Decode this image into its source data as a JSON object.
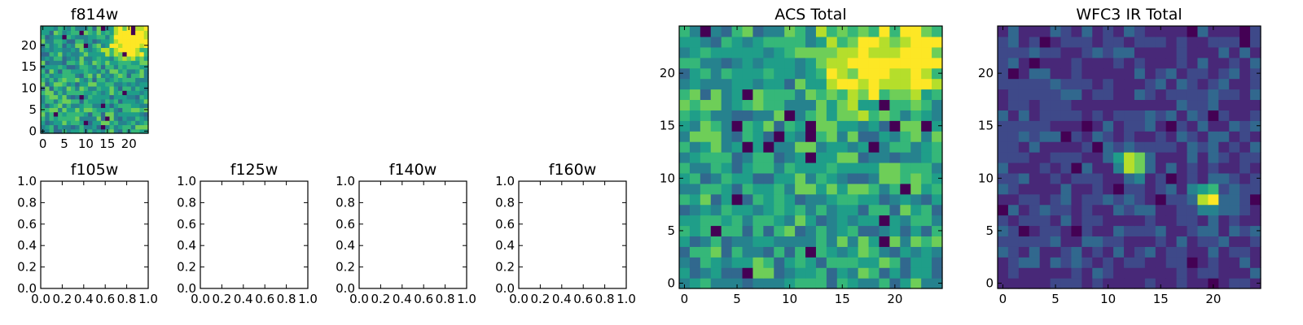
{
  "chart_data": [
    {
      "type": "heatmap",
      "title": "f814w",
      "pixels": 25,
      "xlim": [
        0,
        24
      ],
      "ylim": [
        0,
        24
      ],
      "xticks": [
        "0",
        "5",
        "10",
        "15",
        "20"
      ],
      "yticks": [
        "0",
        "5",
        "10",
        "15",
        "20"
      ],
      "colormap": "viridis",
      "hotspots": [
        {
          "x": 20,
          "y": 21,
          "amplitude": 0.55,
          "sigma": 3.0
        },
        {
          "x": 23,
          "y": 23,
          "amplitude": 0.35,
          "sigma": 2.0
        }
      ],
      "base_level": 0.55,
      "noise": 0.2,
      "seed": 11
    },
    {
      "type": "empty",
      "title": "f105w",
      "xlim": [
        0.0,
        1.0
      ],
      "ylim": [
        0.0,
        1.0
      ],
      "xticks": [
        "0.0",
        "0.2",
        "0.4",
        "0.6",
        "0.8",
        "1.0"
      ],
      "yticks": [
        "0.0",
        "0.2",
        "0.4",
        "0.6",
        "0.8",
        "1.0"
      ]
    },
    {
      "type": "empty",
      "title": "f125w",
      "xlim": [
        0.0,
        1.0
      ],
      "ylim": [
        0.0,
        1.0
      ],
      "xticks": [
        "0.0",
        "0.2",
        "0.4",
        "0.6",
        "0.8",
        "1.0"
      ],
      "yticks": [
        "0.0",
        "0.2",
        "0.4",
        "0.6",
        "0.8",
        "1.0"
      ]
    },
    {
      "type": "empty",
      "title": "f140w",
      "xlim": [
        0.0,
        1.0
      ],
      "ylim": [
        0.0,
        1.0
      ],
      "xticks": [
        "0.0",
        "0.2",
        "0.4",
        "0.6",
        "0.8",
        "1.0"
      ],
      "yticks": [
        "0.0",
        "0.2",
        "0.4",
        "0.6",
        "0.8",
        "1.0"
      ]
    },
    {
      "type": "empty",
      "title": "f160w",
      "xlim": [
        0.0,
        1.0
      ],
      "ylim": [
        0.0,
        1.0
      ],
      "xticks": [
        "0.0",
        "0.2",
        "0.4",
        "0.6",
        "0.8",
        "1.0"
      ],
      "yticks": [
        "0.0",
        "0.2",
        "0.4",
        "0.6",
        "0.8",
        "1.0"
      ]
    },
    {
      "type": "heatmap",
      "title": "ACS Total",
      "pixels": 25,
      "xlim": [
        0,
        24
      ],
      "ylim": [
        0,
        24
      ],
      "xticks": [
        "0",
        "5",
        "10",
        "15",
        "20"
      ],
      "yticks": [
        "0",
        "5",
        "10",
        "15",
        "20"
      ],
      "colormap": "viridis",
      "hotspots": [
        {
          "x": 17,
          "y": 21,
          "amplitude": 0.45,
          "sigma": 2.8
        },
        {
          "x": 23,
          "y": 22,
          "amplitude": 0.45,
          "sigma": 2.2
        }
      ],
      "base_level": 0.55,
      "noise": 0.2,
      "seed": 23
    },
    {
      "type": "heatmap",
      "title": "WFC3 IR Total",
      "pixels": 25,
      "xlim": [
        0,
        24
      ],
      "ylim": [
        0,
        24
      ],
      "xticks": [
        "0",
        "5",
        "10",
        "15",
        "20"
      ],
      "yticks": [
        "0",
        "5",
        "10",
        "15",
        "20"
      ],
      "colormap": "viridis",
      "hotspots": [
        {
          "x": 12.3,
          "y": 11.5,
          "amplitude": 0.75,
          "sigma": 0.9
        },
        {
          "x": 19.5,
          "y": 8.2,
          "amplitude": 0.75,
          "sigma": 0.9
        }
      ],
      "base_level": 0.22,
      "noise": 0.12,
      "seed": 37
    }
  ],
  "colors": {
    "viridis": [
      "#440154",
      "#482878",
      "#3e4989",
      "#31688e",
      "#26828e",
      "#1f9e89",
      "#35b779",
      "#6ece58",
      "#b5de2b",
      "#fde725"
    ],
    "axis": "#000000",
    "background": "#ffffff"
  }
}
